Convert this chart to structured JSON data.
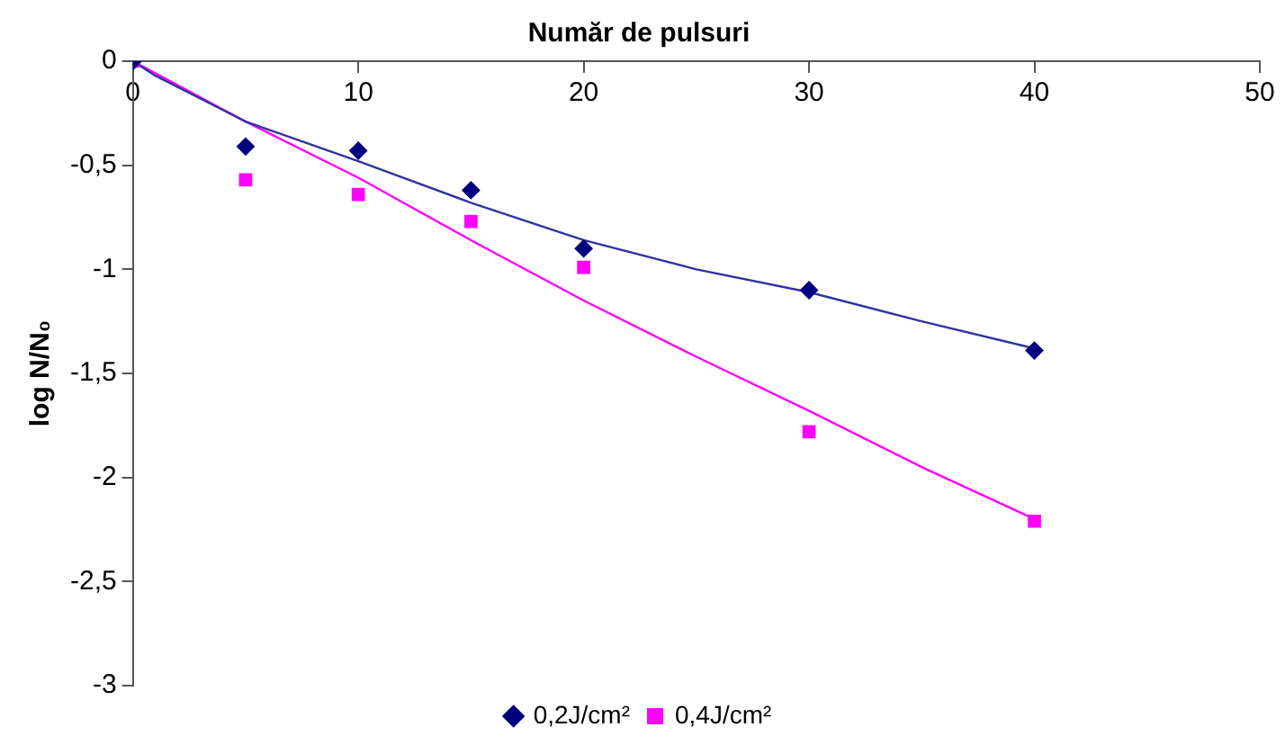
{
  "chart_data": {
    "type": "scatter",
    "xlabel": "Număr de pulsuri",
    "ylabel": "log N/N₀",
    "xlim": [
      0,
      50
    ],
    "xticks": [
      0,
      10,
      20,
      30,
      40,
      50
    ],
    "ylim": [
      -3,
      0
    ],
    "yticks": [
      0,
      {
        "value": -0.5,
        "label": "-0,5"
      },
      -1,
      {
        "value": -1.5,
        "label": "-1,5"
      },
      -2,
      {
        "value": -2.5,
        "label": "-2,5"
      },
      -3
    ],
    "grid": false,
    "legend": "bottom",
    "series": [
      {
        "name": "0,2J/cm²",
        "color": "#000080",
        "marker": "diamond",
        "x": [
          0,
          5,
          10,
          15,
          20,
          30,
          40
        ],
        "values": [
          0,
          -0.41,
          -0.43,
          -0.62,
          -0.9,
          -1.1,
          -1.39
        ]
      },
      {
        "name": "0,4J/cm²",
        "color": "#ff00ff",
        "marker": "square",
        "x": [
          0,
          5,
          10,
          15,
          20,
          30,
          40
        ],
        "values": [
          0,
          -0.57,
          -0.64,
          -0.77,
          -0.99,
          -1.78,
          -2.21
        ]
      },
      {
        "type": "line",
        "color": "#3333a0",
        "marker": "none",
        "x": [
          0,
          1,
          5,
          10,
          15,
          20,
          25,
          30,
          35,
          40
        ],
        "values": [
          0,
          -0.07,
          -0.29,
          -0.48,
          -0.68,
          -0.86,
          -1.0,
          -1.11,
          -1.25,
          -1.38
        ]
      },
      {
        "type": "line",
        "color": "#ff00ff",
        "marker": "none",
        "x": [
          0,
          5,
          10,
          15,
          20,
          25,
          30,
          35,
          40
        ],
        "values": [
          0,
          -0.29,
          -0.56,
          -0.86,
          -1.15,
          -1.42,
          -1.68,
          -1.95,
          -2.2
        ]
      }
    ]
  }
}
